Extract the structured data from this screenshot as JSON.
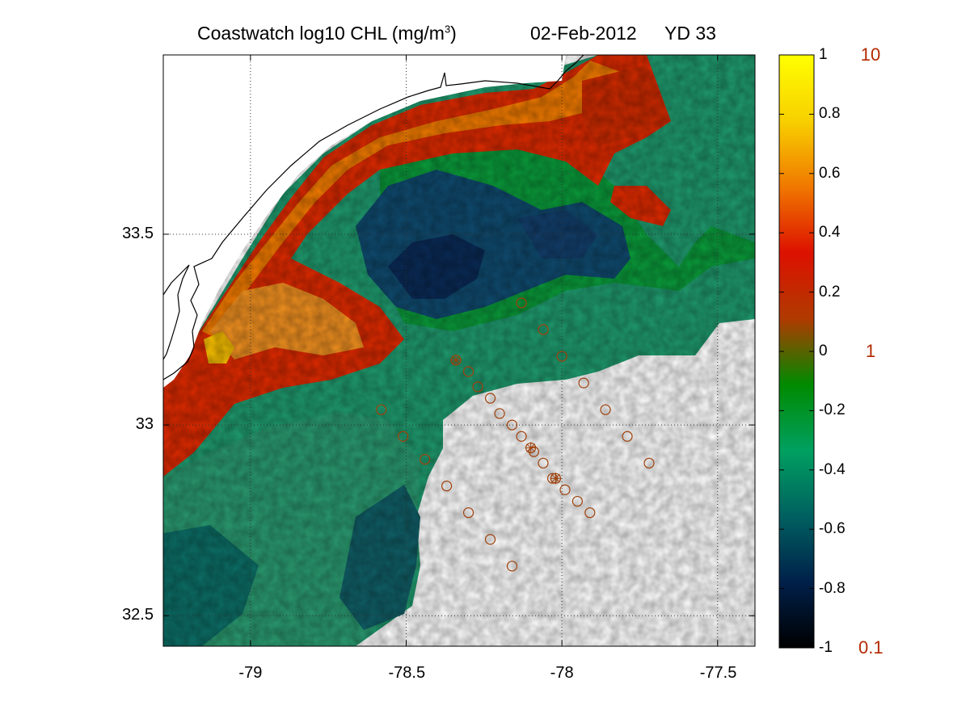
{
  "title": {
    "prefix": "Coastwatch  log10  CHL (mg/m",
    "superscript": "3",
    "suffix": ")",
    "date": "02-Feb-2012",
    "yearday": "YD 33"
  },
  "map": {
    "lon_range": [
      -79.28,
      -77.38
    ],
    "lat_range": [
      32.42,
      33.97
    ],
    "x_ticks": [
      {
        "value": -79,
        "label": "-79"
      },
      {
        "value": -78.5,
        "label": "-78.5"
      },
      {
        "value": -78,
        "label": "-78"
      },
      {
        "value": -77.5,
        "label": "-77.5"
      }
    ],
    "y_ticks": [
      {
        "value": 33.5,
        "label": "33.5"
      },
      {
        "value": 33,
        "label": "33"
      },
      {
        "value": 32.5,
        "label": "32.5"
      }
    ],
    "grid": "dotted",
    "land_color": "#ffffff",
    "coastline_color": "#000000"
  },
  "colorbar": {
    "range": [
      -1,
      1
    ],
    "ticks": [
      "1",
      "0.8",
      "0.6",
      "0.4",
      "0.2",
      "0",
      "-0.2",
      "-0.4",
      "-0.6",
      "-0.8",
      "-1"
    ],
    "right_labels": [
      {
        "value": 1,
        "label": "10"
      },
      {
        "value": 0,
        "label": "1"
      },
      {
        "value": -1,
        "label": "0.1"
      }
    ],
    "right_label_color": "#b22a00",
    "stops": [
      "#000000",
      "#00204a",
      "#006060",
      "#00a060",
      "#008a00",
      "#b03a00",
      "#dd1100",
      "#f07800",
      "#f8d000",
      "#ffff00"
    ]
  },
  "stations": {
    "marker_color": "#a0400a",
    "points": [
      {
        "lon": -78.34,
        "lat": 33.17,
        "cross": true
      },
      {
        "lon": -78.3,
        "lat": 33.14
      },
      {
        "lon": -78.27,
        "lat": 33.1
      },
      {
        "lon": -78.23,
        "lat": 33.07
      },
      {
        "lon": -78.2,
        "lat": 33.03
      },
      {
        "lon": -78.16,
        "lat": 33.0
      },
      {
        "lon": -78.13,
        "lat": 32.97
      },
      {
        "lon": -78.1,
        "lat": 32.94,
        "cross": true
      },
      {
        "lon": -78.09,
        "lat": 32.93
      },
      {
        "lon": -78.06,
        "lat": 32.9
      },
      {
        "lon": -78.03,
        "lat": 32.86
      },
      {
        "lon": -78.02,
        "lat": 32.86,
        "cross": true
      },
      {
        "lon": -77.99,
        "lat": 32.83
      },
      {
        "lon": -77.95,
        "lat": 32.8
      },
      {
        "lon": -77.91,
        "lat": 32.77
      },
      {
        "lon": -78.13,
        "lat": 33.32
      },
      {
        "lon": -78.06,
        "lat": 33.25
      },
      {
        "lon": -78.0,
        "lat": 33.18
      },
      {
        "lon": -77.93,
        "lat": 33.11
      },
      {
        "lon": -77.86,
        "lat": 33.04
      },
      {
        "lon": -77.79,
        "lat": 32.97
      },
      {
        "lon": -77.72,
        "lat": 32.9
      },
      {
        "lon": -78.58,
        "lat": 33.04
      },
      {
        "lon": -78.51,
        "lat": 32.97
      },
      {
        "lon": -78.44,
        "lat": 32.91
      },
      {
        "lon": -78.37,
        "lat": 32.84
      },
      {
        "lon": -78.3,
        "lat": 32.77
      },
      {
        "lon": -78.23,
        "lat": 32.7
      },
      {
        "lon": -78.16,
        "lat": 32.63
      }
    ]
  }
}
